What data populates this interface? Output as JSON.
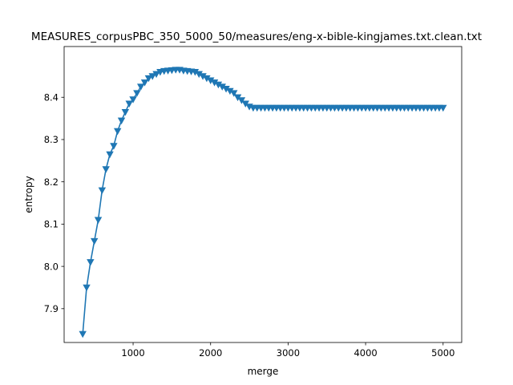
{
  "chart_data": {
    "type": "line",
    "title": "MEASURES_corpusPBC_350_5000_50/measures/eng-x-bible-kingjames.txt.clean.txt",
    "xlabel": "merge",
    "ylabel": "entropy",
    "xlim": [
      110,
      5240
    ],
    "ylim": [
      7.82,
      8.52
    ],
    "xticks": [
      1000,
      2000,
      3000,
      4000,
      5000
    ],
    "yticks": [
      7.9,
      8.0,
      8.1,
      8.2,
      8.3,
      8.4
    ],
    "grid": false,
    "marker": "triangle-down",
    "series_color": "#1f77b4",
    "series": [
      {
        "x": [
          350,
          400,
          450,
          500,
          550,
          600,
          650,
          700,
          750,
          800,
          850,
          900,
          950,
          1000,
          1050,
          1100,
          1150,
          1200,
          1250,
          1300,
          1350,
          1400,
          1450,
          1500,
          1550,
          1600,
          1650,
          1700,
          1750,
          1800,
          1850,
          1900,
          1950,
          2000,
          2050,
          2100,
          2150,
          2200,
          2250,
          2300,
          2350,
          2400,
          2450,
          2500,
          2550,
          2600,
          2650,
          2700,
          2750,
          2800,
          2850,
          2900,
          2950,
          3000,
          3050,
          3100,
          3150,
          3200,
          3250,
          3300,
          3350,
          3400,
          3450,
          3500,
          3550,
          3600,
          3650,
          3700,
          3750,
          3800,
          3850,
          3900,
          3950,
          4000,
          4050,
          4100,
          4150,
          4200,
          4250,
          4300,
          4350,
          4400,
          4450,
          4500,
          4550,
          4600,
          4650,
          4700,
          4750,
          4800,
          4850,
          4900,
          4950,
          5000
        ],
        "values": [
          7.84,
          7.95,
          8.01,
          8.06,
          8.11,
          8.18,
          8.23,
          8.265,
          8.285,
          8.32,
          8.345,
          8.365,
          8.385,
          8.395,
          8.41,
          8.425,
          8.435,
          8.445,
          8.45,
          8.455,
          8.46,
          8.462,
          8.463,
          8.464,
          8.465,
          8.465,
          8.463,
          8.462,
          8.461,
          8.46,
          8.455,
          8.45,
          8.445,
          8.44,
          8.435,
          8.43,
          8.425,
          8.42,
          8.415,
          8.41,
          8.4,
          8.393,
          8.385,
          8.378,
          8.375,
          8.375,
          8.375,
          8.375,
          8.375,
          8.375,
          8.375,
          8.375,
          8.375,
          8.375,
          8.375,
          8.375,
          8.375,
          8.375,
          8.375,
          8.375,
          8.375,
          8.375,
          8.375,
          8.375,
          8.375,
          8.375,
          8.375,
          8.375,
          8.375,
          8.375,
          8.375,
          8.375,
          8.375,
          8.375,
          8.375,
          8.375,
          8.375,
          8.375,
          8.375,
          8.375,
          8.375,
          8.375,
          8.375,
          8.375,
          8.375,
          8.375,
          8.375,
          8.375,
          8.375,
          8.375,
          8.375,
          8.375,
          8.375,
          8.375
        ]
      }
    ]
  }
}
